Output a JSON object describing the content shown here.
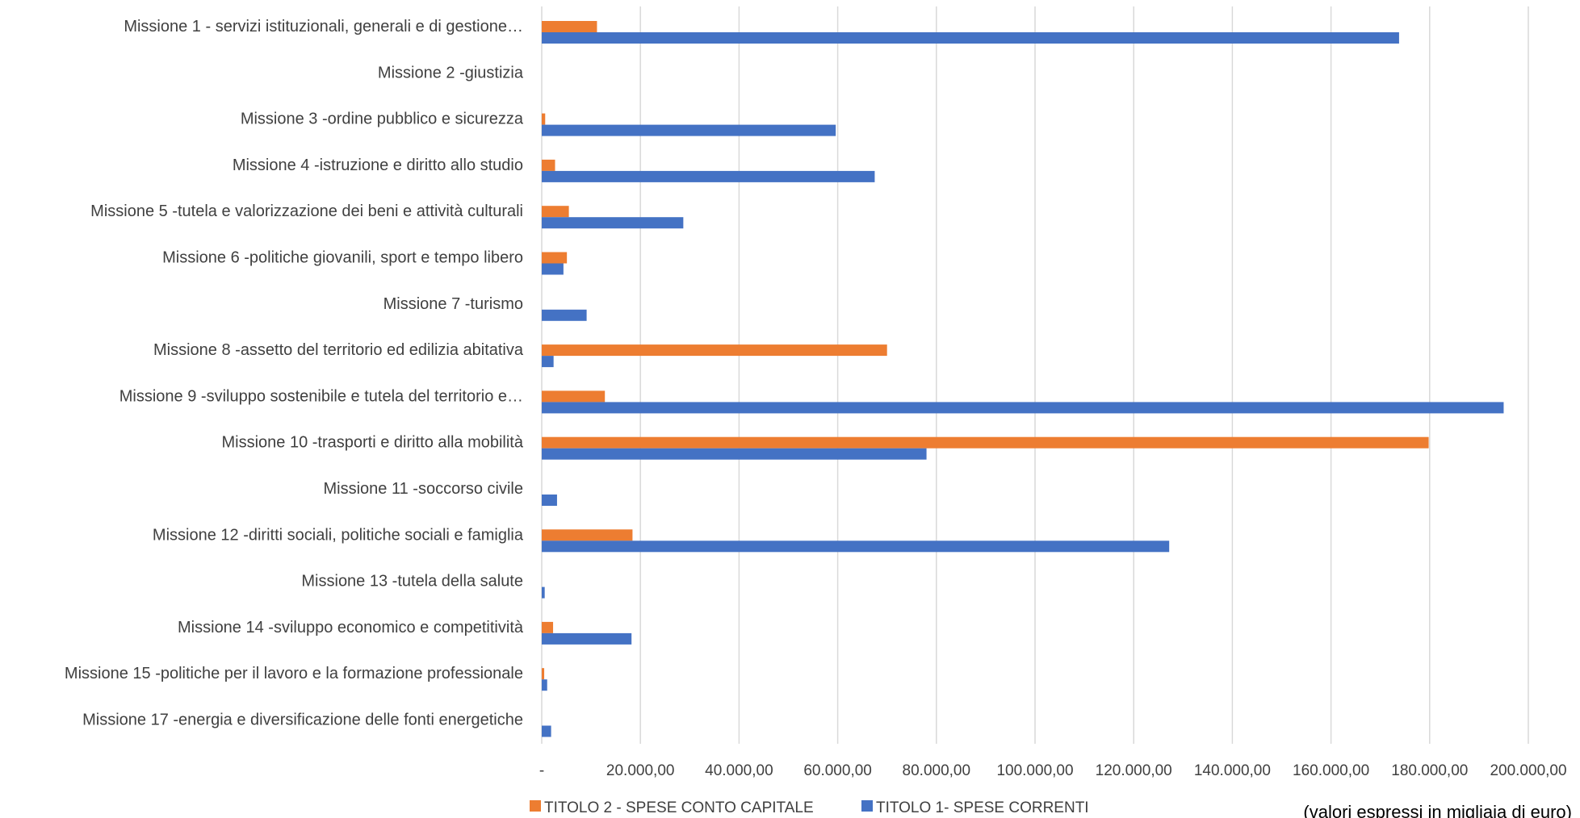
{
  "chart_data": {
    "type": "bar",
    "orientation": "horizontal",
    "categories": [
      "Missione 1 - servizi istituzionali, generali e di gestione…",
      "Missione 2 -giustizia",
      "Missione 3 -ordine pubblico e sicurezza",
      "Missione 4 -istruzione e diritto allo studio",
      "Missione 5 -tutela e valorizzazione dei beni e attività culturali",
      "Missione 6 -politiche giovanili, sport e tempo libero",
      "Missione 7 -turismo",
      "Missione 8 -assetto del territorio ed edilizia abitativa",
      "Missione 9 -sviluppo sostenibile e tutela del territorio e…",
      "Missione 10 -trasporti e diritto alla mobilità",
      "Missione 11 -soccorso civile",
      "Missione 12 -diritti sociali, politiche sociali e famiglia",
      "Missione 13 -tutela della salute",
      "Missione 14 -sviluppo economico e competitività",
      "Missione 15 -politiche per il lavoro e la formazione professionale",
      "Missione 17 -energia e diversificazione delle fonti energetiche"
    ],
    "series": [
      {
        "name": "TITOLO 2 - SPESE CONTO CAPITALE",
        "color": "#ED7D31",
        "values": [
          11200,
          0,
          700,
          2700,
          5500,
          5100,
          0,
          70000,
          12800,
          179800,
          0,
          18400,
          0,
          2300,
          500,
          0
        ]
      },
      {
        "name": "TITOLO 1- SPESE CORRENTI",
        "color": "#4472C4",
        "values": [
          173800,
          0,
          59600,
          67500,
          28700,
          4400,
          9100,
          2400,
          195000,
          78000,
          3100,
          127200,
          600,
          18200,
          1100,
          1900
        ]
      }
    ],
    "x_ticks": [
      "-",
      "20.000,00",
      "40.000,00",
      "60.000,00",
      "80.000,00",
      "100.000,00",
      "120.000,00",
      "140.000,00",
      "160.000,00",
      "180.000,00",
      "200.000,00"
    ],
    "x_range": [
      0,
      200000
    ],
    "grid": "vertical",
    "legend_position": "bottom",
    "note": "(valori espressi in migliaia di euro)"
  }
}
